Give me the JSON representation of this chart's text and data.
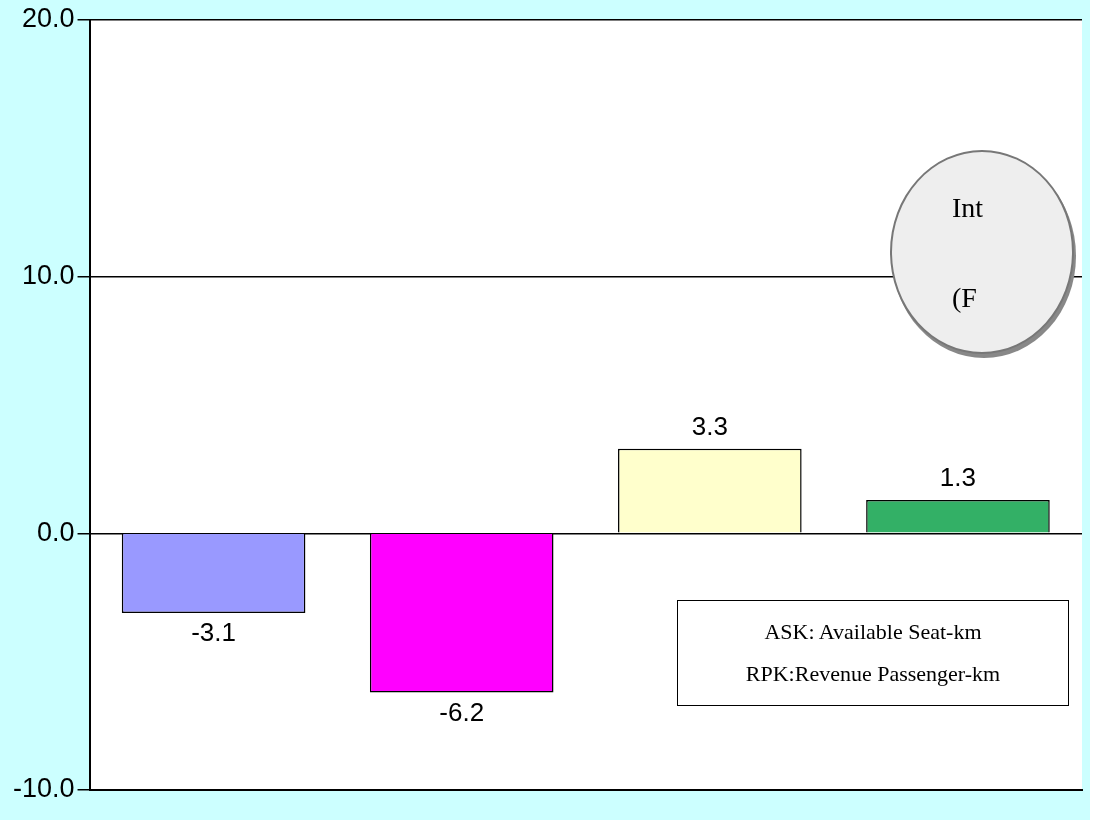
{
  "chart_data": {
    "type": "bar",
    "categories": [
      null,
      null,
      null,
      null
    ],
    "values": [
      -3.1,
      -6.2,
      3.3,
      1.3
    ],
    "colors": [
      "#9999ff",
      "#ff00ff",
      "#ffffcc",
      "#33b066"
    ],
    "ylim": [
      -10,
      20
    ],
    "yticks": [
      {
        "value": -10,
        "label": "-10.0"
      },
      {
        "value": 0,
        "label": "0.0"
      },
      {
        "value": 10,
        "label": "10.0"
      },
      {
        "value": 20,
        "label": "20.0"
      }
    ],
    "grid": "y",
    "data_labels": true,
    "annotations": [
      "ASK: Available Seat-km",
      "RPK:Revenue Passenger-km",
      "Int",
      "(F"
    ]
  }
}
